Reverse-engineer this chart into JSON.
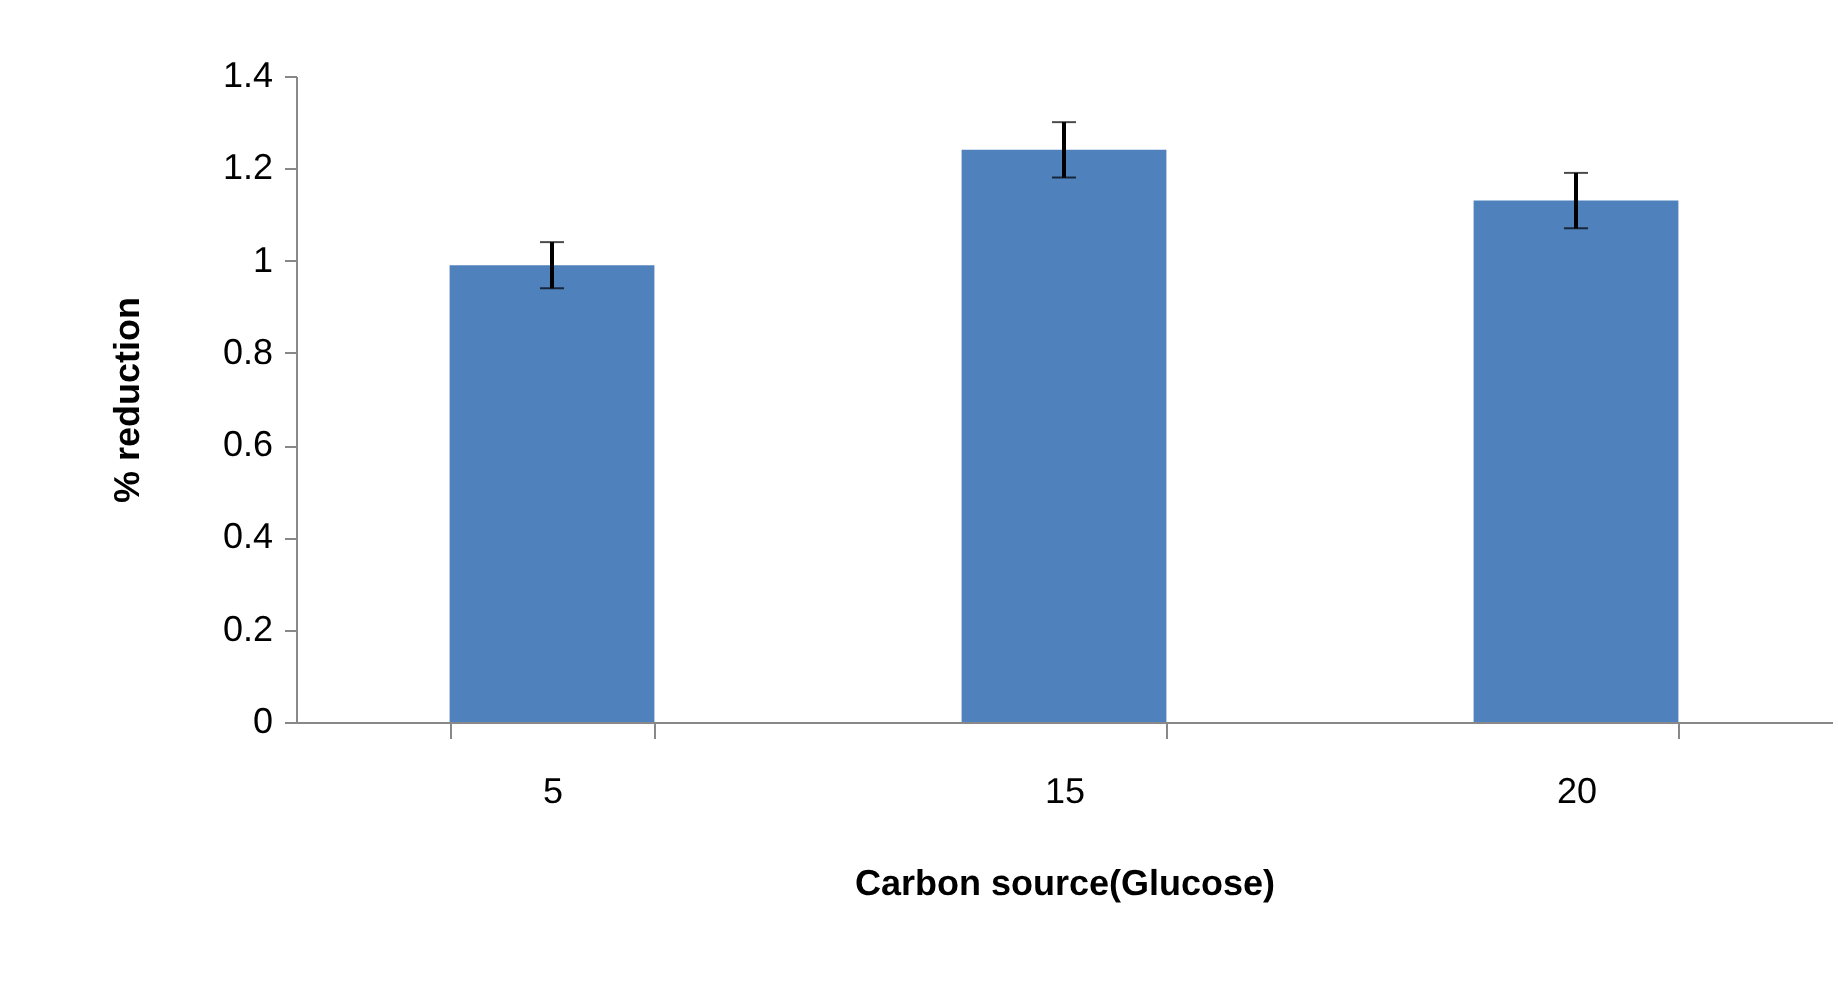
{
  "chart_data": {
    "type": "bar",
    "xlabel": "Carbon source(Glucose)",
    "ylabel": "% reduction",
    "categories": [
      "5",
      "15",
      "20"
    ],
    "values": [
      0.99,
      1.24,
      1.13
    ],
    "errors": [
      0.05,
      0.06,
      0.06
    ],
    "color": "#4f81bd",
    "ylim": [
      0,
      1.4
    ],
    "yticks": [
      0,
      0.2,
      0.4,
      0.6,
      0.8,
      1,
      1.2,
      1.4
    ],
    "grid": false
  }
}
